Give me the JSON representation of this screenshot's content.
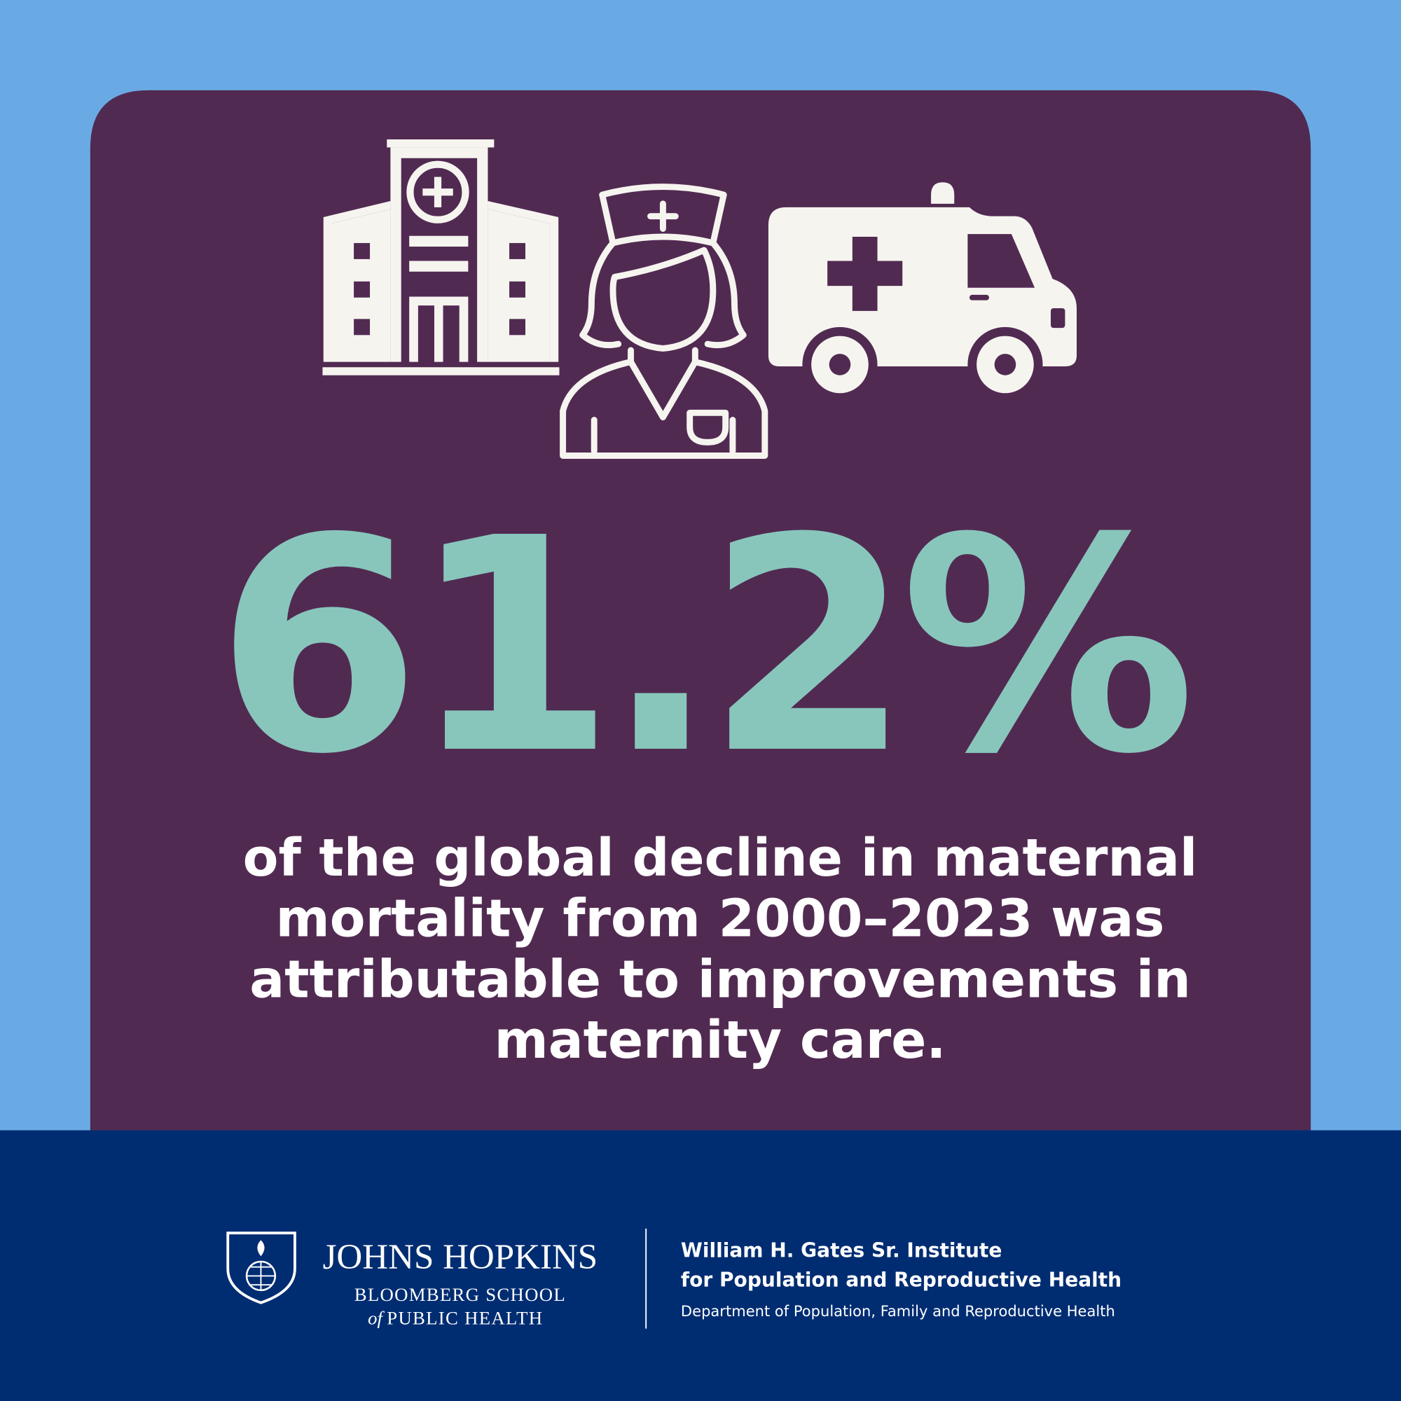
{
  "headline": {
    "stat": "61.2%",
    "text_lines": [
      "of the global decline in maternal",
      "mortality from 2000–2023 was",
      "attributable to improvements in",
      "maternity care."
    ]
  },
  "footer": {
    "school": {
      "name": "JOHNS HOPKINS",
      "line2": "BLOOMBERG SCHOOL",
      "line3_prefix": "of",
      "line3": "PUBLIC HEALTH"
    },
    "institute": {
      "line1": "William H. Gates Sr. Institute",
      "line2": "for Population and Reproductive Health",
      "department": "Department of Population, Family and Reproductive Health"
    }
  }
}
